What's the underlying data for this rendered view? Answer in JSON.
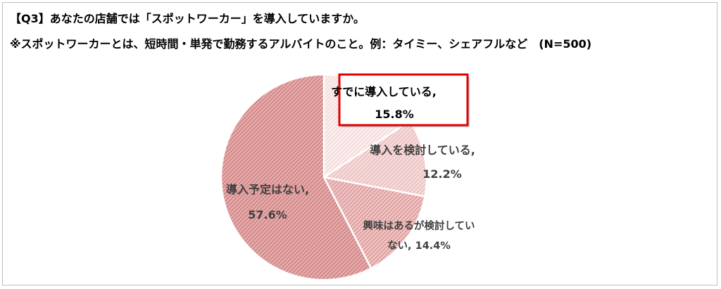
{
  "title_line1": "【Q3】あなたの店舗では「スポットワーカー」を導入していますか。",
  "title_line2": "※スポットワーカーとは、短時間・単発で勤務するアルバイトのこと。例：タイミー、シェアフルなど　(N=500)",
  "chart_data": {
    "type": "pie",
    "title": "【Q3】あなたの店舗では「スポットワーカー」を導入していますか。",
    "subtitle": "※スポットワーカーとは、短時間・単発で勤務するアルバイトのこと。例：タイミー、シェアフルなど　(N=500)",
    "start_angle": "12 o'clock",
    "direction": "clockwise",
    "slices": [
      {
        "label": "すでに導入している,",
        "value": 15.8,
        "value_text": "15.8%",
        "color": "#f5dcdc",
        "highlighted": true
      },
      {
        "label": "導入を検討している,",
        "value": 12.2,
        "value_text": "12.2%",
        "color": "#eab9b9"
      },
      {
        "label": "興味はあるが検討していない,",
        "value": 14.4,
        "value_text": "14.4%",
        "color": "#d98a8a"
      },
      {
        "label": "導入予定はない,",
        "value": 57.6,
        "value_text": "57.6%",
        "color": "#c97373"
      }
    ],
    "highlight_color": "#e00000"
  }
}
